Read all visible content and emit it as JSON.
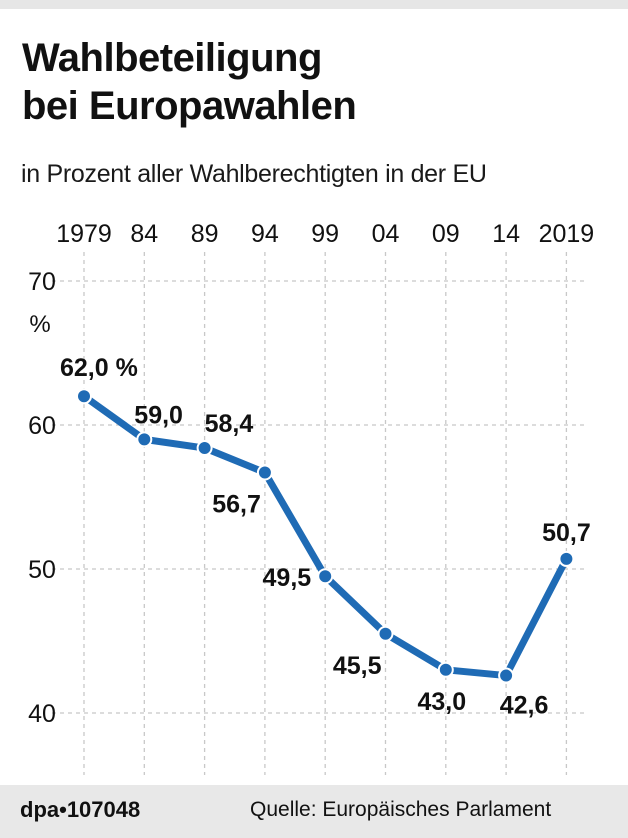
{
  "header": {
    "title_lines": [
      "Wahlbeteiligung",
      "bei Europawahlen"
    ],
    "subtitle": "in Prozent aller Wahlberechtigten in der EU"
  },
  "footer": {
    "agency_id": "dpa•107048",
    "source": "Quelle: Europäisches Parlament"
  },
  "colors": {
    "line": "#1f6bb5",
    "grid": "#c8c8c8",
    "footer_bg": "#e8e8e8",
    "text": "#111111"
  },
  "chart_data": {
    "type": "line",
    "title": "Wahlbeteiligung bei Europawahlen",
    "subtitle": "in Prozent aller Wahlberechtigten in der EU",
    "xlabel": "",
    "ylabel": "%",
    "x": [
      1979,
      1984,
      1989,
      1994,
      1999,
      2004,
      2009,
      2014,
      2019
    ],
    "x_tick_labels": [
      "1979",
      "84",
      "89",
      "94",
      "99",
      "04",
      "09",
      "14",
      "2019"
    ],
    "series": [
      {
        "name": "Wahlbeteiligung",
        "values": [
          62.0,
          59.0,
          58.4,
          56.7,
          49.5,
          45.5,
          43.0,
          42.6,
          50.7
        ],
        "labels": [
          "62,0 %",
          "59,0",
          "58,4",
          "56,7",
          "49,5",
          "45,5",
          "43,0",
          "42,6",
          "50,7"
        ],
        "label_positions": [
          "above",
          "above",
          "above-right",
          "below-left",
          "left",
          "below-left",
          "below",
          "below",
          "above"
        ]
      }
    ],
    "y_ticks": [
      40,
      50,
      60,
      70
    ],
    "y_tick_labels": [
      "40",
      "50",
      "60",
      "70"
    ],
    "y_unit_label": "%",
    "ylim": [
      40,
      70
    ],
    "grid": true,
    "x_axis_position": "top",
    "legend": "none",
    "source": "Quelle: Europäisches Parlament"
  }
}
